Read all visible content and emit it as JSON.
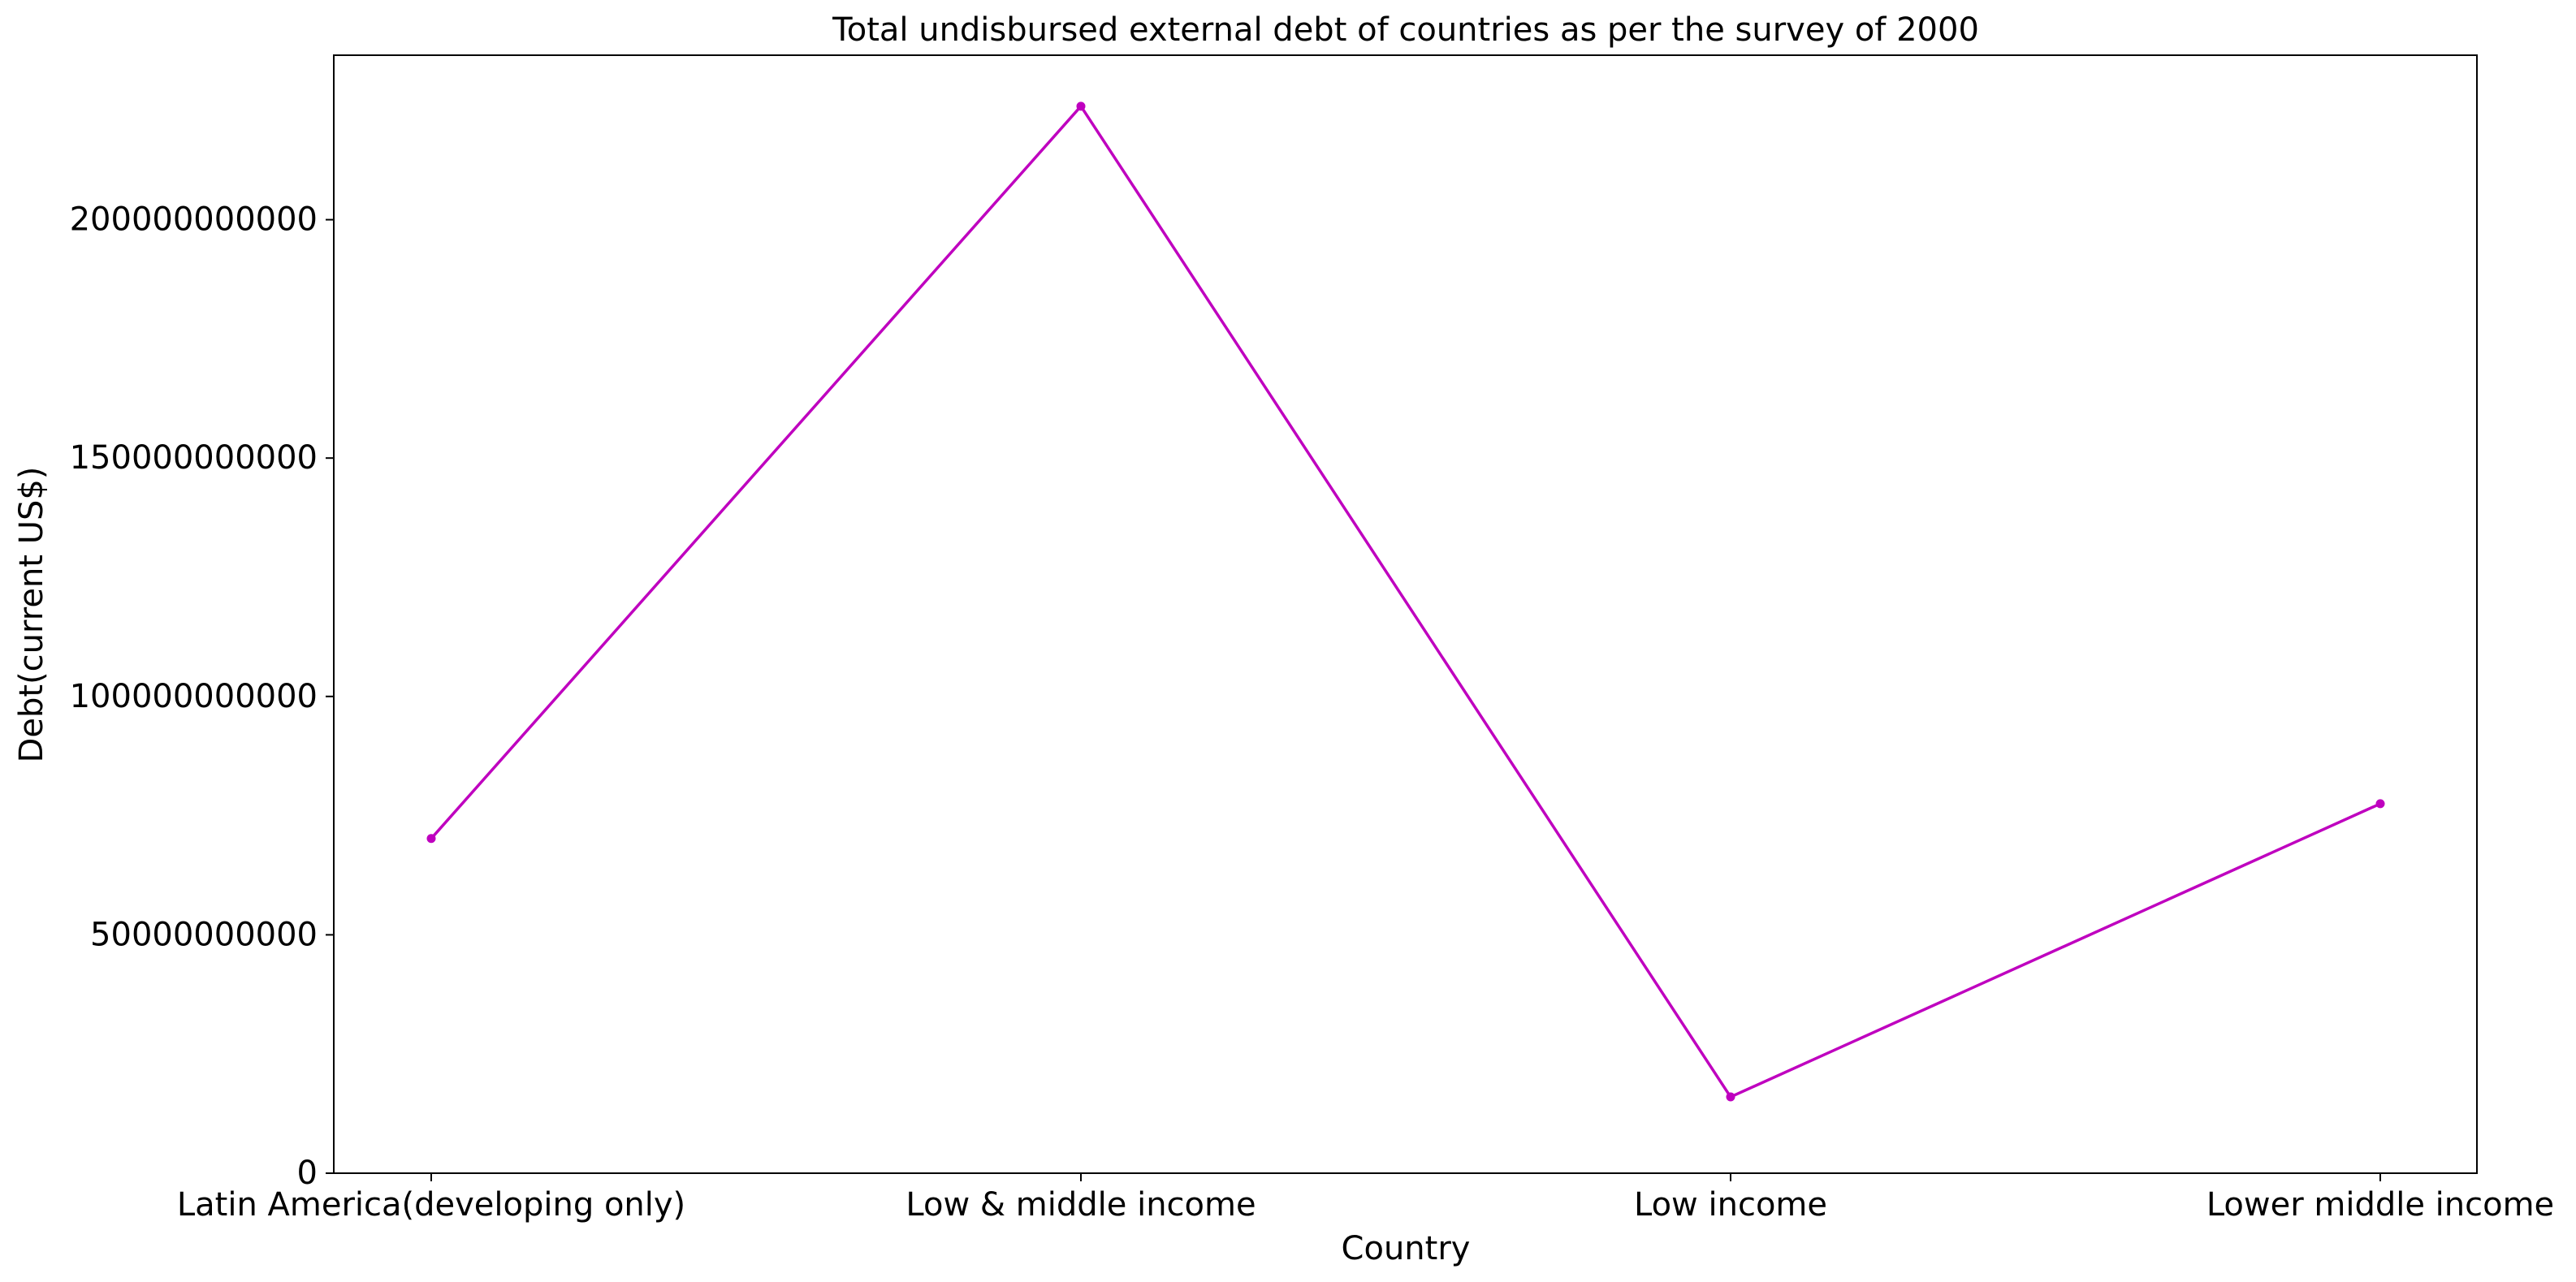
{
  "chart_data": {
    "type": "line",
    "title": "Total undisbursed external debt of countries as per the survey of 2000",
    "xlabel": "Country",
    "ylabel": "Debt(current US$)",
    "categories": [
      "Latin America(developing only)",
      "Low & middle income",
      "Low income",
      "Lower middle income"
    ],
    "series": [
      {
        "values": [
          70200000000,
          223800000000,
          16000000000,
          77500000000
        ],
        "color": "#bf00bf",
        "marker": "circle"
      }
    ],
    "yticks": [
      0,
      50000000000,
      100000000000,
      150000000000,
      200000000000
    ],
    "ytick_labels": [
      "0",
      "50000000000",
      "100000000000",
      "150000000000",
      "200000000000"
    ],
    "ylim": [
      0,
      234500000000
    ],
    "grid": false,
    "legend": "none"
  }
}
